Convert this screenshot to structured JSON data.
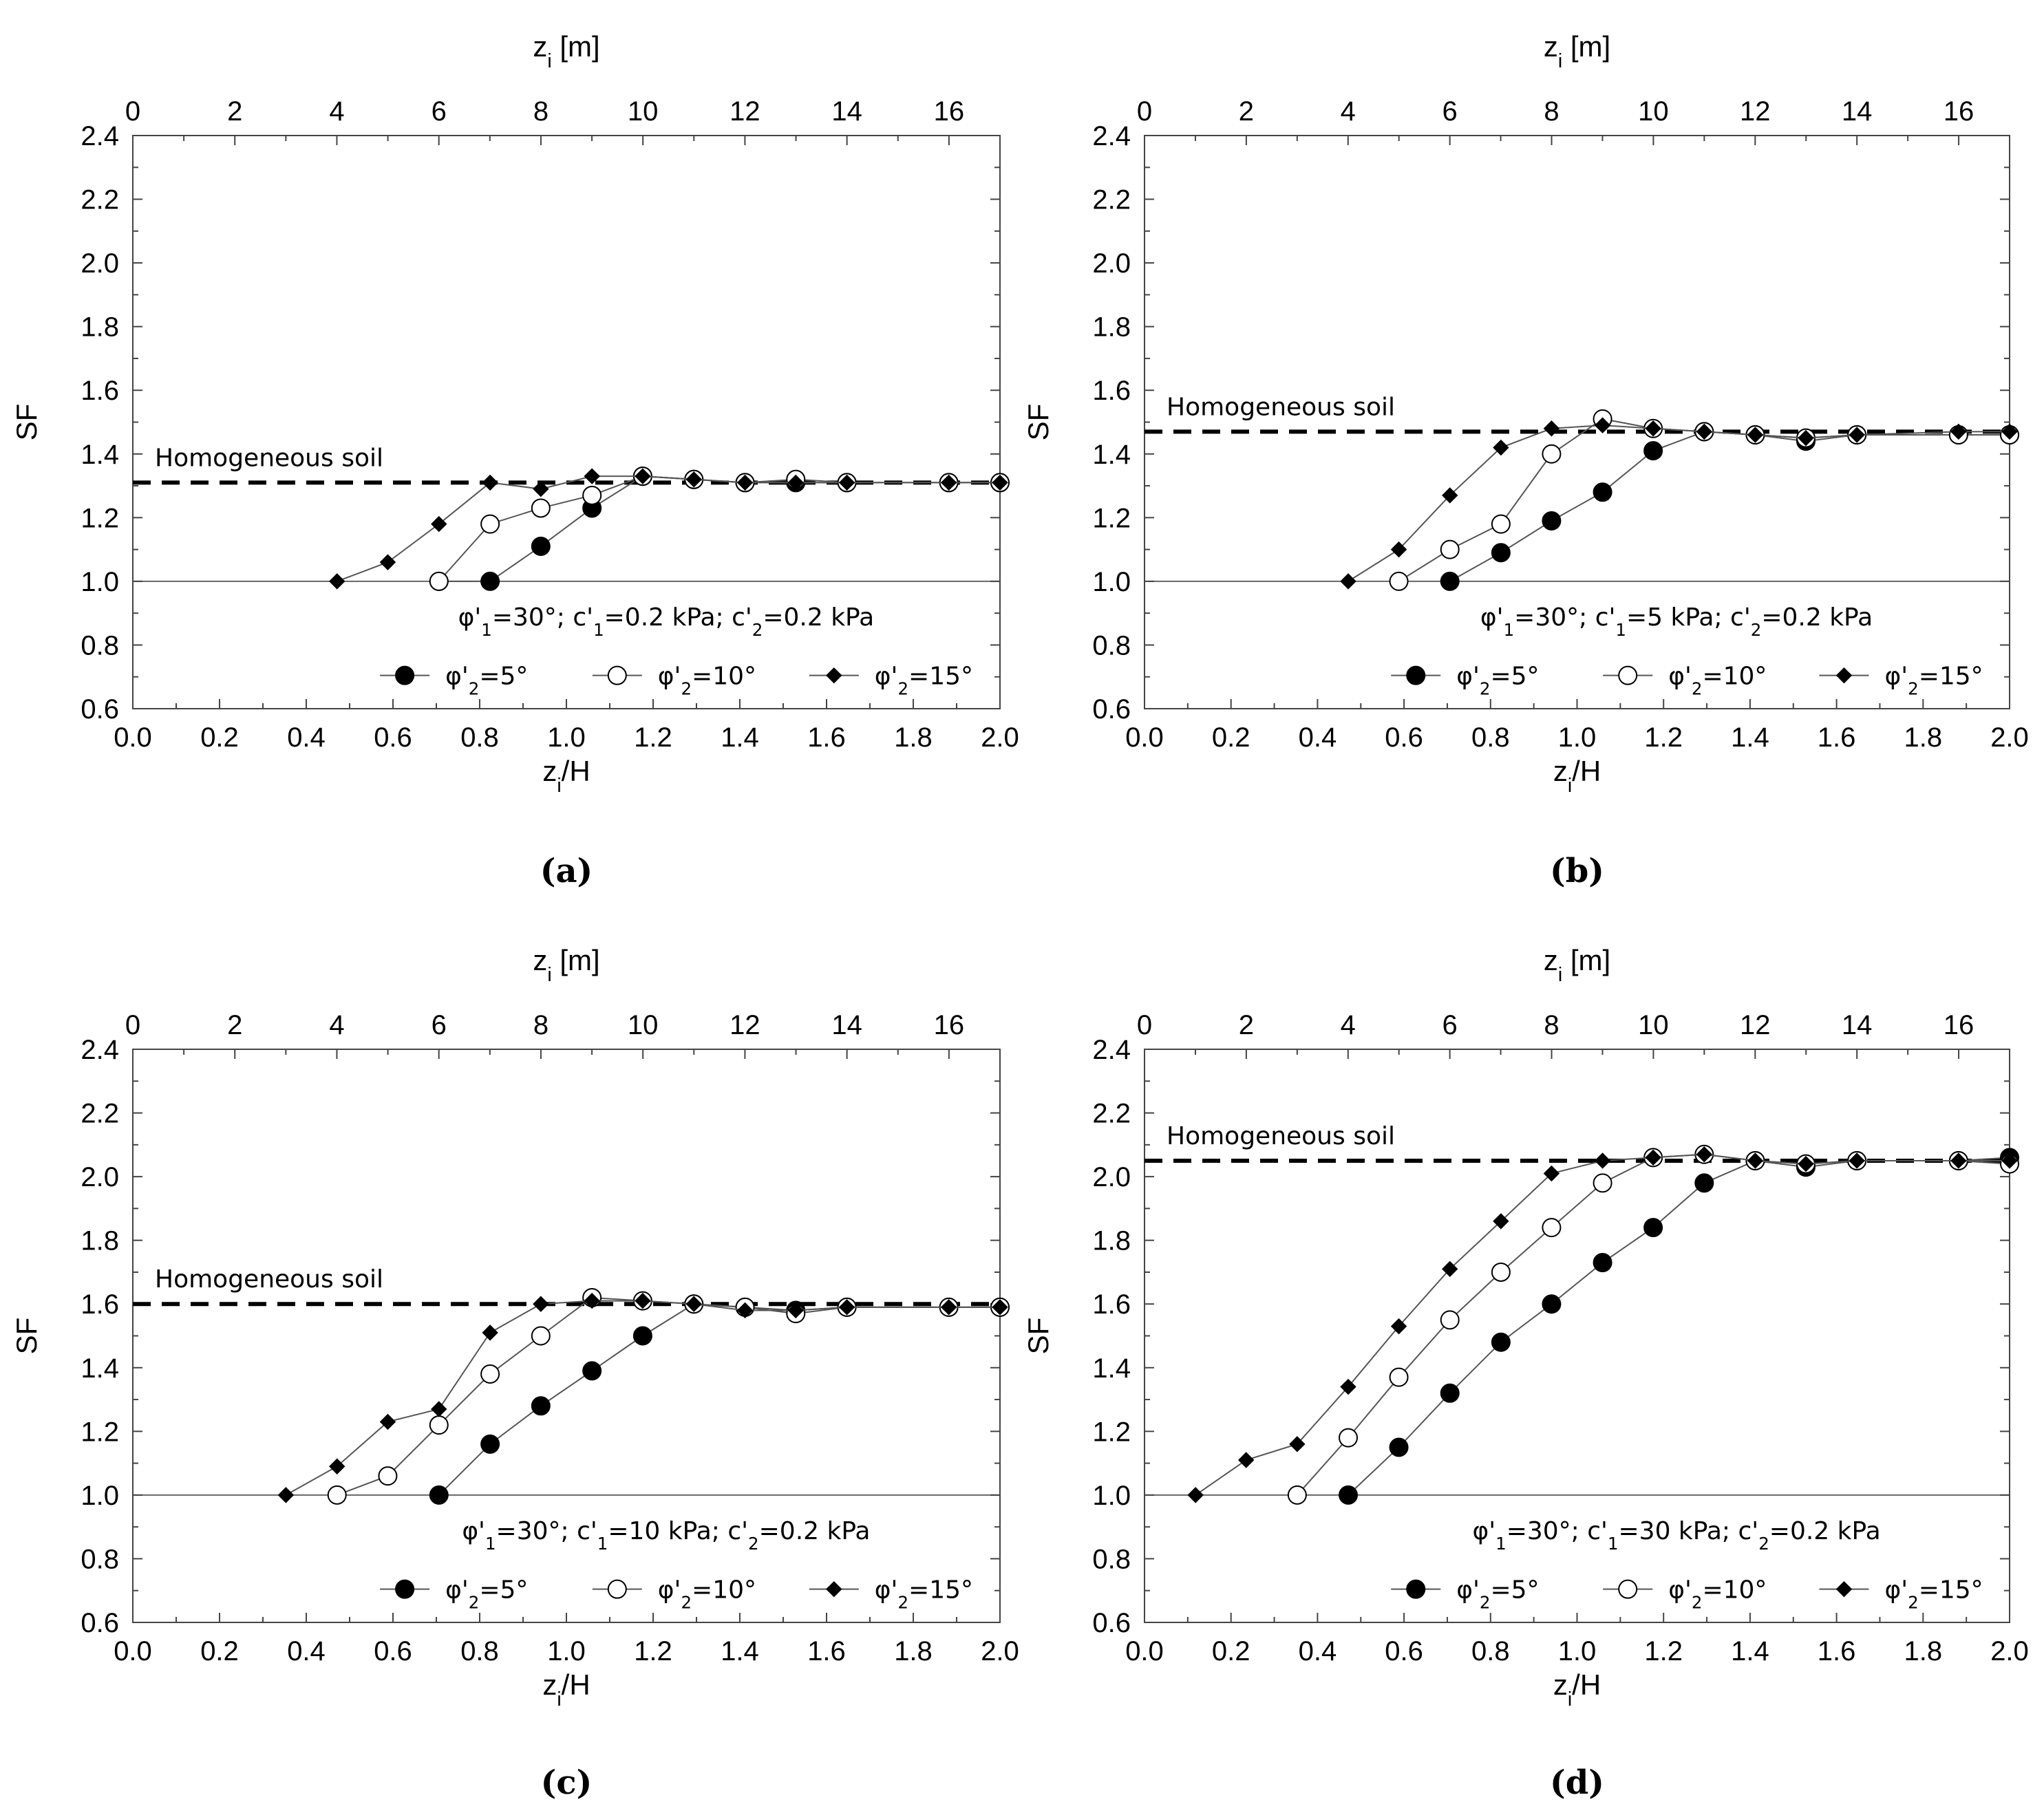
{
  "chart_data": [
    {
      "type": "line",
      "panel_label": "(a)",
      "xlabel": "z_i/H",
      "xlabel_main": "z",
      "xlabel_sub": "i",
      "xlabel_rest": "/H",
      "x2label_main": "z",
      "x2label_sub": "i",
      "x2label_rest": " [m]",
      "ylabel": "SF",
      "xlim": [
        0,
        2
      ],
      "x2lim": [
        0,
        17
      ],
      "ylim": [
        0.6,
        2.4
      ],
      "xticks": [
        "0.0",
        "0.2",
        "0.4",
        "0.6",
        "0.8",
        "1.0",
        "1.2",
        "1.4",
        "1.6",
        "1.8",
        "2.0"
      ],
      "x2ticks": [
        "0",
        "2",
        "4",
        "6",
        "8",
        "10",
        "12",
        "14",
        "16"
      ],
      "yticks": [
        "0.6",
        "0.8",
        "1.0",
        "1.2",
        "1.4",
        "1.6",
        "1.8",
        "2.0",
        "2.2",
        "2.4"
      ],
      "reference_line": {
        "label": "Homogeneous soil",
        "y": 1.31
      },
      "annotation": {
        "p1": "φ'",
        "s1": "1",
        "t1": "=30°; c'",
        "s2": "1",
        "t2": "=0.2 kPa; c'",
        "s3": "2",
        "t3": "=0.2 kPa"
      },
      "series": [
        {
          "name": "φ'2=5°",
          "lp": "φ'",
          "ls": "2",
          "lr": "=5°",
          "marker": "filled-circle",
          "x": [
            0.706,
            0.824,
            0.941,
            1.059,
            1.176,
            1.294,
            1.412,
            1.529,
            1.647,
            1.882,
            2.0
          ],
          "y": [
            1.0,
            1.0,
            1.11,
            1.23,
            1.33,
            1.32,
            1.31,
            1.31,
            1.31,
            1.31,
            1.31
          ]
        },
        {
          "name": "φ'2=10°",
          "lp": "φ'",
          "ls": "2",
          "lr": "=10°",
          "marker": "open-circle",
          "x": [
            0.706,
            0.824,
            0.941,
            1.059,
            1.176,
            1.294,
            1.412,
            1.529,
            1.647,
            1.882,
            2.0
          ],
          "y": [
            1.0,
            1.18,
            1.23,
            1.27,
            1.33,
            1.32,
            1.31,
            1.32,
            1.31,
            1.31,
            1.31
          ]
        },
        {
          "name": "φ'2=15°",
          "lp": "φ'",
          "ls": "2",
          "lr": "=15°",
          "marker": "diamond",
          "x": [
            0.471,
            0.588,
            0.706,
            0.824,
            0.941,
            1.059,
            1.176,
            1.294,
            1.412,
            1.529,
            1.647,
            1.882,
            2.0
          ],
          "y": [
            1.0,
            1.06,
            1.18,
            1.31,
            1.29,
            1.33,
            1.33,
            1.32,
            1.31,
            1.31,
            1.31,
            1.31,
            1.31
          ]
        }
      ]
    },
    {
      "type": "line",
      "panel_label": "(b)",
      "xlabel": "z_i/H",
      "xlabel_main": "z",
      "xlabel_sub": "i",
      "xlabel_rest": "/H",
      "x2label_main": "z",
      "x2label_sub": "i",
      "x2label_rest": " [m]",
      "ylabel": "SF",
      "xlim": [
        0,
        2
      ],
      "x2lim": [
        0,
        17
      ],
      "ylim": [
        0.6,
        2.4
      ],
      "xticks": [
        "0.0",
        "0.2",
        "0.4",
        "0.6",
        "0.8",
        "1.0",
        "1.2",
        "1.4",
        "1.6",
        "1.8",
        "2.0"
      ],
      "x2ticks": [
        "0",
        "2",
        "4",
        "6",
        "8",
        "10",
        "12",
        "14",
        "16"
      ],
      "yticks": [
        "0.6",
        "0.8",
        "1.0",
        "1.2",
        "1.4",
        "1.6",
        "1.8",
        "2.0",
        "2.2",
        "2.4"
      ],
      "reference_line": {
        "label": "Homogeneous soil",
        "y": 1.47
      },
      "annotation": {
        "p1": "φ'",
        "s1": "1",
        "t1": "=30°; c'",
        "s2": "1",
        "t2": "=5 kPa; c'",
        "s3": "2",
        "t3": "=0.2 kPa"
      },
      "series": [
        {
          "name": "φ'2=5°",
          "lp": "φ'",
          "ls": "2",
          "lr": "=5°",
          "marker": "filled-circle",
          "x": [
            0.706,
            0.824,
            0.941,
            1.059,
            1.176,
            1.294,
            1.412,
            1.529,
            1.647,
            1.882,
            2.0
          ],
          "y": [
            1.0,
            1.09,
            1.19,
            1.28,
            1.41,
            1.47,
            1.46,
            1.44,
            1.46,
            1.46,
            1.46
          ]
        },
        {
          "name": "φ'2=10°",
          "lp": "φ'",
          "ls": "2",
          "lr": "=10°",
          "marker": "open-circle",
          "x": [
            0.588,
            0.706,
            0.824,
            0.941,
            1.059,
            1.176,
            1.294,
            1.412,
            1.529,
            1.647,
            1.882,
            2.0
          ],
          "y": [
            1.0,
            1.1,
            1.18,
            1.4,
            1.51,
            1.48,
            1.47,
            1.46,
            1.45,
            1.46,
            1.46,
            1.46
          ]
        },
        {
          "name": "φ'2=15°",
          "lp": "φ'",
          "ls": "2",
          "lr": "=15°",
          "marker": "diamond",
          "x": [
            0.471,
            0.588,
            0.706,
            0.824,
            0.941,
            1.059,
            1.176,
            1.294,
            1.412,
            1.529,
            1.647,
            1.882,
            2.0
          ],
          "y": [
            1.0,
            1.1,
            1.27,
            1.42,
            1.48,
            1.49,
            1.48,
            1.47,
            1.46,
            1.45,
            1.46,
            1.47,
            1.47
          ]
        }
      ]
    },
    {
      "type": "line",
      "panel_label": "(c)",
      "xlabel": "z_i/H",
      "xlabel_main": "z",
      "xlabel_sub": "i",
      "xlabel_rest": "/H",
      "x2label_main": "z",
      "x2label_sub": "i",
      "x2label_rest": " [m]",
      "ylabel": "SF",
      "xlim": [
        0,
        2
      ],
      "x2lim": [
        0,
        17
      ],
      "ylim": [
        0.6,
        2.4
      ],
      "xticks": [
        "0.0",
        "0.2",
        "0.4",
        "0.6",
        "0.8",
        "1.0",
        "1.2",
        "1.4",
        "1.6",
        "1.8",
        "2.0"
      ],
      "x2ticks": [
        "0",
        "2",
        "4",
        "6",
        "8",
        "10",
        "12",
        "14",
        "16"
      ],
      "yticks": [
        "0.6",
        "0.8",
        "1.0",
        "1.2",
        "1.4",
        "1.6",
        "1.8",
        "2.0",
        "2.2",
        "2.4"
      ],
      "reference_line": {
        "label": "Homogeneous soil",
        "y": 1.6
      },
      "annotation": {
        "p1": "φ'",
        "s1": "1",
        "t1": "=30°; c'",
        "s2": "1",
        "t2": "=10 kPa; c'",
        "s3": "2",
        "t3": "=0.2 kPa"
      },
      "series": [
        {
          "name": "φ'2=5°",
          "lp": "φ'",
          "ls": "2",
          "lr": "=5°",
          "marker": "filled-circle",
          "x": [
            0.706,
            0.824,
            0.941,
            1.059,
            1.176,
            1.294,
            1.412,
            1.529,
            1.647,
            1.882,
            2.0
          ],
          "y": [
            1.0,
            1.16,
            1.28,
            1.39,
            1.5,
            1.6,
            1.59,
            1.58,
            1.59,
            1.59,
            1.59
          ]
        },
        {
          "name": "φ'2=10°",
          "lp": "φ'",
          "ls": "2",
          "lr": "=10°",
          "marker": "open-circle",
          "x": [
            0.471,
            0.588,
            0.706,
            0.824,
            0.941,
            1.059,
            1.176,
            1.294,
            1.412,
            1.529,
            1.647,
            1.882,
            2.0
          ],
          "y": [
            1.0,
            1.06,
            1.22,
            1.38,
            1.5,
            1.62,
            1.61,
            1.6,
            1.59,
            1.57,
            1.59,
            1.59,
            1.59
          ]
        },
        {
          "name": "φ'2=15°",
          "lp": "φ'",
          "ls": "2",
          "lr": "=15°",
          "marker": "diamond",
          "x": [
            0.353,
            0.471,
            0.588,
            0.706,
            0.824,
            0.941,
            1.059,
            1.176,
            1.294,
            1.412,
            1.529,
            1.647,
            1.882,
            2.0
          ],
          "y": [
            1.0,
            1.09,
            1.23,
            1.27,
            1.51,
            1.6,
            1.61,
            1.61,
            1.6,
            1.58,
            1.58,
            1.59,
            1.59,
            1.59
          ]
        }
      ]
    },
    {
      "type": "line",
      "panel_label": "(d)",
      "xlabel": "z_i/H",
      "xlabel_main": "z",
      "xlabel_sub": "i",
      "xlabel_rest": "/H",
      "x2label_main": "z",
      "x2label_sub": "i",
      "x2label_rest": " [m]",
      "ylabel": "SF",
      "xlim": [
        0,
        2
      ],
      "x2lim": [
        0,
        17
      ],
      "ylim": [
        0.6,
        2.4
      ],
      "xticks": [
        "0.0",
        "0.2",
        "0.4",
        "0.6",
        "0.8",
        "1.0",
        "1.2",
        "1.4",
        "1.6",
        "1.8",
        "2.0"
      ],
      "x2ticks": [
        "0",
        "2",
        "4",
        "6",
        "8",
        "10",
        "12",
        "14",
        "16"
      ],
      "yticks": [
        "0.6",
        "0.8",
        "1.0",
        "1.2",
        "1.4",
        "1.6",
        "1.8",
        "2.0",
        "2.2",
        "2.4"
      ],
      "reference_line": {
        "label": "Homogeneous soil",
        "y": 2.05
      },
      "annotation": {
        "p1": "φ'",
        "s1": "1",
        "t1": "=30°; c'",
        "s2": "1",
        "t2": "=30 kPa; c'",
        "s3": "2",
        "t3": "=0.2 kPa"
      },
      "series": [
        {
          "name": "φ'2=5°",
          "lp": "φ'",
          "ls": "2",
          "lr": "=5°",
          "marker": "filled-circle",
          "x": [
            0.471,
            0.588,
            0.706,
            0.824,
            0.941,
            1.059,
            1.176,
            1.294,
            1.412,
            1.529,
            1.647,
            1.882,
            2.0
          ],
          "y": [
            1.0,
            1.15,
            1.32,
            1.48,
            1.6,
            1.73,
            1.84,
            1.98,
            2.05,
            2.03,
            2.05,
            2.05,
            2.06
          ]
        },
        {
          "name": "φ'2=10°",
          "lp": "φ'",
          "ls": "2",
          "lr": "=10°",
          "marker": "open-circle",
          "x": [
            0.353,
            0.471,
            0.588,
            0.706,
            0.824,
            0.941,
            1.059,
            1.176,
            1.294,
            1.412,
            1.529,
            1.647,
            1.882,
            2.0
          ],
          "y": [
            1.0,
            1.18,
            1.37,
            1.55,
            1.7,
            1.84,
            1.98,
            2.06,
            2.07,
            2.05,
            2.04,
            2.05,
            2.05,
            2.04
          ]
        },
        {
          "name": "φ'2=15°",
          "lp": "φ'",
          "ls": "2",
          "lr": "=15°",
          "marker": "diamond",
          "x": [
            0.118,
            0.235,
            0.353,
            0.471,
            0.588,
            0.706,
            0.824,
            0.941,
            1.059,
            1.176,
            1.294,
            1.412,
            1.529,
            1.647,
            1.882,
            2.0
          ],
          "y": [
            1.0,
            1.11,
            1.16,
            1.34,
            1.53,
            1.71,
            1.86,
            2.01,
            2.05,
            2.06,
            2.07,
            2.05,
            2.04,
            2.05,
            2.05,
            2.05
          ]
        }
      ]
    }
  ]
}
